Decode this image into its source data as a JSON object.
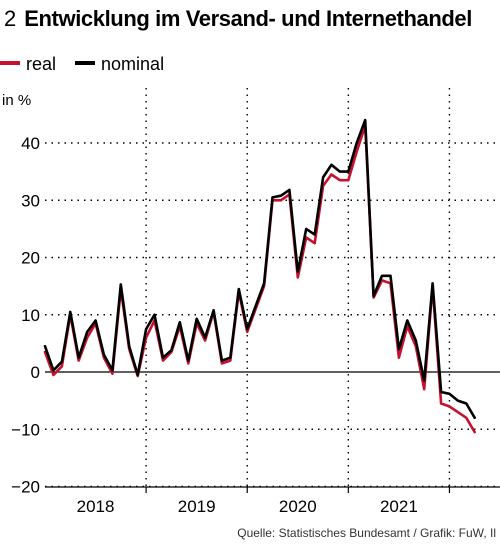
{
  "header": {
    "number": "2",
    "title": "Entwicklung im Versand- und Internethandel"
  },
  "source": "Quelle: Statistisches Bundesamt / Grafik: FuW, Il",
  "colors": {
    "real": "#c8102e",
    "nominal": "#000000",
    "grid": "#000000"
  },
  "chart_data": {
    "type": "line",
    "ylabel": "in %",
    "ylim": [
      -20,
      45
    ],
    "yticks": [
      -20,
      -10,
      0,
      10,
      20,
      30,
      40
    ],
    "ytick_labels": [
      "−20",
      "−10",
      "0",
      "10",
      "20",
      "30",
      "40"
    ],
    "x_range": [
      2017.5,
      2022.0
    ],
    "year_labels": [
      {
        "x": 2018.0,
        "label": "2018"
      },
      {
        "x": 2019.0,
        "label": "2019"
      },
      {
        "x": 2020.0,
        "label": "2020"
      },
      {
        "x": 2021.0,
        "label": "2021"
      }
    ],
    "grid": true,
    "legend_position": "top-left",
    "series": [
      {
        "name": "real",
        "color": "#c8102e",
        "x": [
          2017.5,
          2017.583,
          2017.667,
          2017.75,
          2017.833,
          2017.917,
          2018.0,
          2018.083,
          2018.167,
          2018.25,
          2018.333,
          2018.417,
          2018.5,
          2018.583,
          2018.667,
          2018.75,
          2018.833,
          2018.917,
          2019.0,
          2019.083,
          2019.167,
          2019.25,
          2019.333,
          2019.417,
          2019.5,
          2019.583,
          2019.667,
          2019.75,
          2019.833,
          2019.917,
          2020.0,
          2020.083,
          2020.167,
          2020.25,
          2020.333,
          2020.417,
          2020.5,
          2020.583,
          2020.667,
          2020.75,
          2020.833,
          2020.917,
          2021.0,
          2021.083,
          2021.167,
          2021.25,
          2021.333,
          2021.417,
          2021.5,
          2021.583,
          2021.667,
          2021.75
        ],
        "values": [
          3.5,
          -0.5,
          1.0,
          10.0,
          2.0,
          6.0,
          8.5,
          2.5,
          -0.3,
          14.5,
          4.0,
          -0.7,
          6.0,
          9.0,
          2.0,
          3.5,
          8.0,
          1.5,
          8.5,
          5.5,
          10.5,
          1.5,
          2.0,
          14.0,
          7.0,
          11.0,
          15.0,
          30.0,
          30.0,
          31.0,
          16.5,
          23.5,
          22.5,
          32.5,
          34.5,
          33.5,
          33.5,
          38.5,
          43.0,
          13.0,
          16.0,
          15.5,
          2.5,
          8.0,
          4.5,
          -3.0,
          15.0,
          -5.5,
          -6.0,
          -7.0,
          -8.0,
          -10.5
        ]
      },
      {
        "name": "nominal",
        "color": "#000000",
        "x": [
          2017.5,
          2017.583,
          2017.667,
          2017.75,
          2017.833,
          2017.917,
          2018.0,
          2018.083,
          2018.167,
          2018.25,
          2018.333,
          2018.417,
          2018.5,
          2018.583,
          2018.667,
          2018.75,
          2018.833,
          2018.917,
          2019.0,
          2019.083,
          2019.167,
          2019.25,
          2019.333,
          2019.417,
          2019.5,
          2019.583,
          2019.667,
          2019.75,
          2019.833,
          2019.917,
          2020.0,
          2020.083,
          2020.167,
          2020.25,
          2020.333,
          2020.417,
          2020.5,
          2020.583,
          2020.667,
          2020.75,
          2020.833,
          2020.917,
          2021.0,
          2021.083,
          2021.167,
          2021.25,
          2021.333,
          2021.417,
          2021.5,
          2021.583,
          2021.667,
          2021.75
        ],
        "values": [
          4.5,
          0.3,
          1.8,
          10.5,
          2.5,
          7.0,
          9.0,
          3.0,
          0.3,
          15.3,
          4.5,
          -0.5,
          7.5,
          10.0,
          2.5,
          3.8,
          8.7,
          2.0,
          9.3,
          6.0,
          10.8,
          2.0,
          2.5,
          14.5,
          7.5,
          11.5,
          15.5,
          30.5,
          30.8,
          31.8,
          17.5,
          25.0,
          24.0,
          34.0,
          36.2,
          35.0,
          35.0,
          40.0,
          44.0,
          13.3,
          16.8,
          16.8,
          4.0,
          9.0,
          5.5,
          -1.5,
          15.5,
          -3.5,
          -3.8,
          -5.0,
          -5.5,
          -8.0
        ]
      }
    ]
  }
}
